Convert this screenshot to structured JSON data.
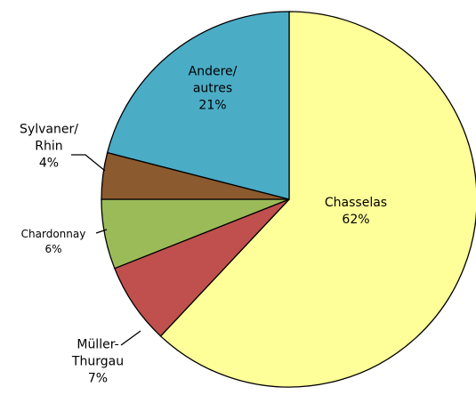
{
  "chart_data": {
    "type": "pie",
    "categories": [
      "Chasselas",
      "Müller-\nThurgau",
      "Chardonnay",
      "Sylvaner/\nRhin",
      "Andere/\nautres"
    ],
    "values": [
      62,
      7,
      6,
      4,
      21
    ],
    "value_labels": [
      "62%",
      "7%",
      "6%",
      "4%",
      "21%"
    ],
    "colors": [
      "#ffff99",
      "#c0504d",
      "#9bbb59",
      "#8b5a2e",
      "#4bacc6"
    ]
  }
}
